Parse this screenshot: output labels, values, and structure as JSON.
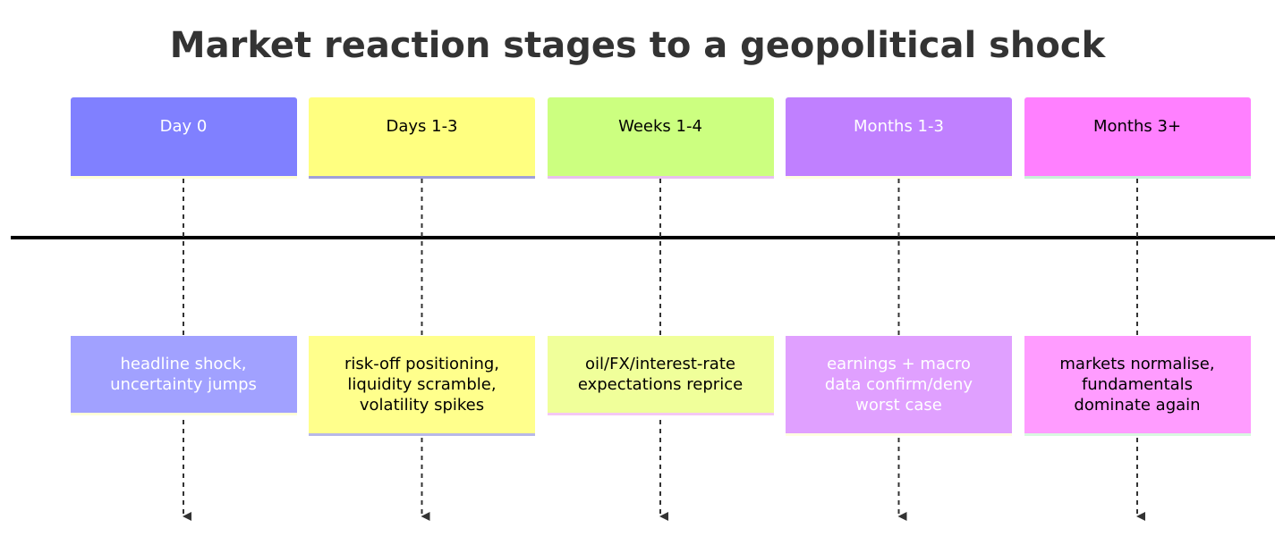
{
  "title": "Market reaction stages to a geopolitical shock",
  "periods": [
    {
      "label": "Day 0",
      "event": [
        "headline shock,",
        "uncertainty jumps"
      ]
    },
    {
      "label": "Days 1-3",
      "event": [
        "risk-off positioning,",
        "liquidity scramble,",
        "volatility spikes"
      ]
    },
    {
      "label": "Weeks 1-4",
      "event": [
        "oil/FX/interest-rate",
        "expectations reprice"
      ]
    },
    {
      "label": "Months 1-3",
      "event": [
        "earnings + macro",
        "data confirm/deny",
        "worst case"
      ]
    },
    {
      "label": "Months 3+",
      "event": [
        "markets normalise,",
        "fundamentals",
        "dominate again"
      ]
    }
  ]
}
